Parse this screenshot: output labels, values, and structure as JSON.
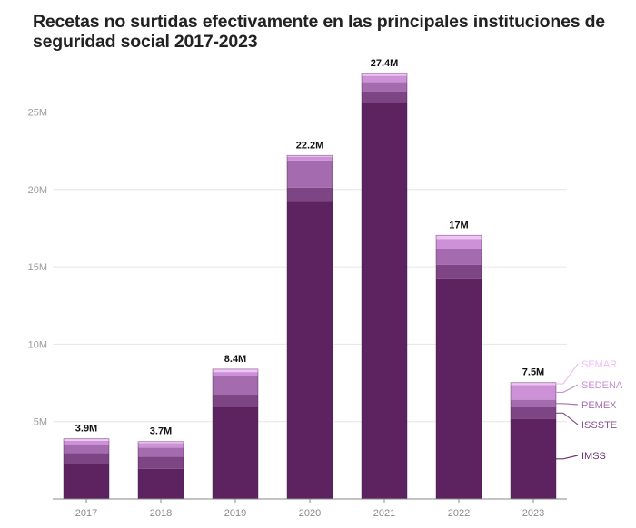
{
  "chart_data": {
    "type": "bar",
    "stacked": true,
    "title": "Recetas no surtidas efectivamente en las principales instituciones de seguridad social 2017-2023",
    "xlabel": "",
    "ylabel": "",
    "ylim": [
      0,
      27.5
    ],
    "y_ticks": [
      5,
      10,
      15,
      20,
      25
    ],
    "y_tick_labels": [
      "5M",
      "10M",
      "15M",
      "20M",
      "25M"
    ],
    "grid": true,
    "legend_placement": "right (inline labels next to last bar)",
    "categories": [
      "2017",
      "2018",
      "2019",
      "2020",
      "2021",
      "2022",
      "2023"
    ],
    "totals_labels": [
      "3.9M",
      "3.7M",
      "8.4M",
      "22.2M",
      "27.4M",
      "17M",
      "7.5M"
    ],
    "units": "millions of prescriptions",
    "series": [
      {
        "name": "IMSS",
        "color": "#5c2360",
        "values": [
          2.25,
          1.95,
          5.96,
          19.2,
          25.66,
          14.26,
          5.18
        ]
      },
      {
        "name": "ISSSTE",
        "color": "#7d4583",
        "values": [
          0.72,
          0.79,
          0.78,
          0.91,
          0.68,
          0.88,
          0.74
        ]
      },
      {
        "name": "PEMEX",
        "color": "#a46bae",
        "values": [
          0.5,
          0.58,
          1.21,
          1.76,
          0.59,
          1.04,
          0.49
        ]
      },
      {
        "name": "SEDENA",
        "color": "#cc91d7",
        "values": [
          0.29,
          0.29,
          0.25,
          0.25,
          0.41,
          0.63,
          0.96
        ]
      },
      {
        "name": "SEMAR",
        "color": "#f0c3f5",
        "values": [
          0.13,
          0.1,
          0.19,
          0.08,
          0.14,
          0.23,
          0.15
        ]
      }
    ],
    "legend_label_colors": [
      "#6b3570",
      "#8a4f90",
      "#a86fb2",
      "#c98fd3",
      "#efbff4"
    ]
  }
}
